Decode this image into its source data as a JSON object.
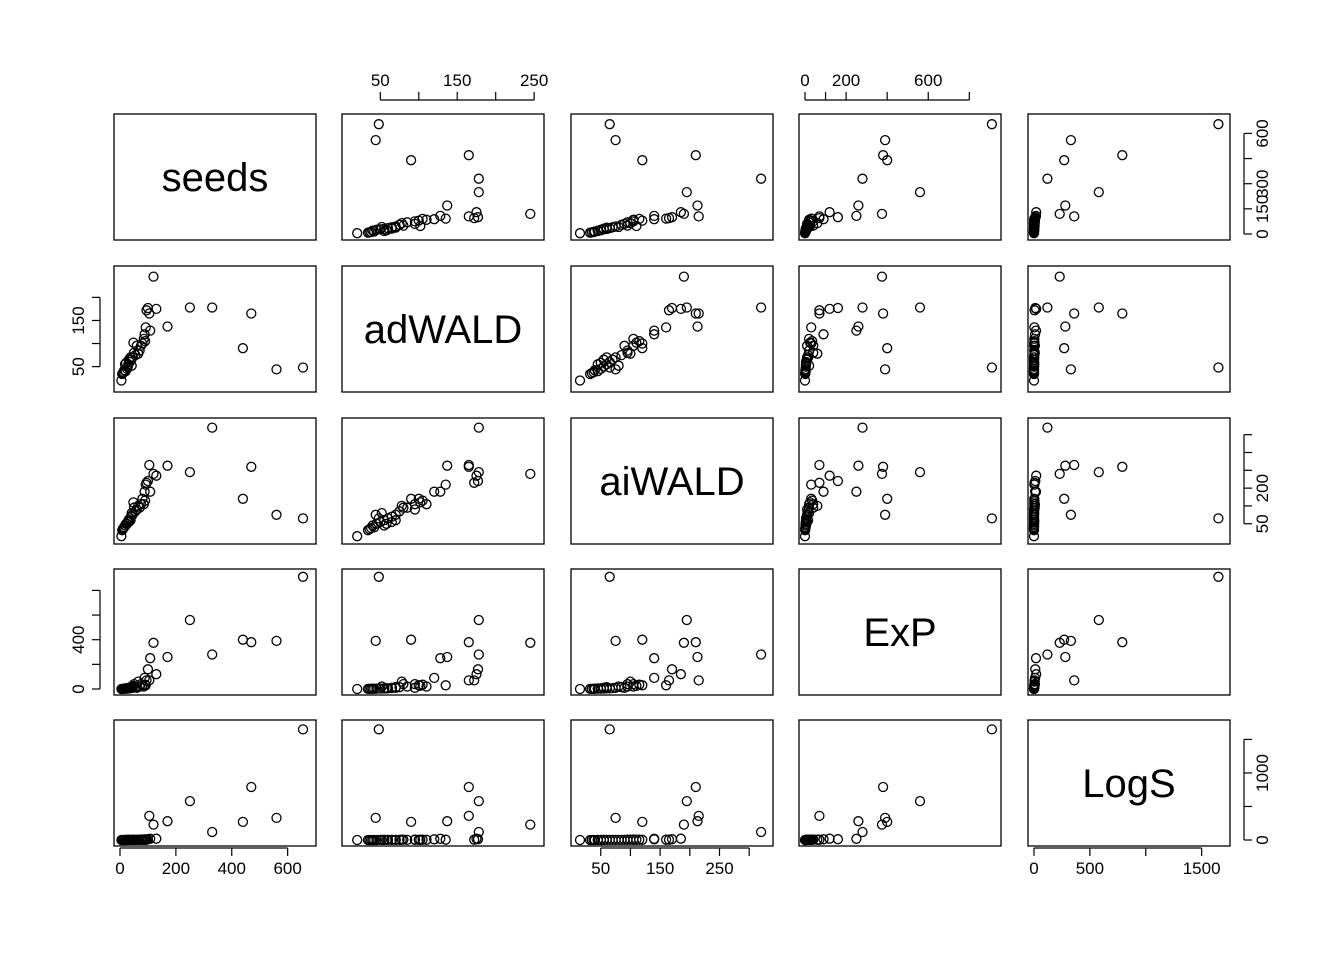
{
  "chart_data": {
    "type": "scatter",
    "variables": [
      "seeds",
      "adWALD",
      "aiWALD",
      "ExP",
      "LogS"
    ],
    "axes": {
      "seeds": {
        "range": [
          0,
          680
        ],
        "ticks": [
          0,
          200,
          400,
          600
        ],
        "tick_labels": [
          "0",
          "200",
          "400",
          "600"
        ]
      },
      "adWALD": {
        "range": [
          8,
          255
        ],
        "ticks": [
          50,
          100,
          150,
          200,
          250
        ],
        "tick_labels": [
          "50",
          "",
          "150",
          "",
          "250"
        ]
      },
      "aiWALD": {
        "range": [
          10,
          330
        ],
        "ticks": [
          50,
          100,
          150,
          200,
          250,
          300
        ],
        "tick_labels": [
          "50",
          "",
          "150",
          "",
          "250",
          ""
        ]
      },
      "ExP": {
        "range": [
          0,
          925
        ],
        "ticks": [
          0,
          100,
          200,
          400,
          600,
          800
        ],
        "tick_labels": [
          "0",
          "",
          "200",
          "",
          "600",
          ""
        ]
      },
      "LogS": {
        "range": [
          0,
          1700
        ],
        "ticks": [
          0,
          500,
          1000,
          1500
        ],
        "tick_labels": [
          "0",
          "500",
          "",
          "1500"
        ]
      }
    },
    "left_axis_labels": {
      "adWALD": [
        "50",
        "",
        "150",
        ""
      ],
      "ExP": [
        "0",
        "",
        "400",
        ""
      ]
    },
    "right_axis_labels": {
      "seeds": [
        "0",
        "150",
        "300",
        "",
        "600"
      ],
      "aiWALD": [
        "50",
        "",
        "200",
        ""
      ],
      "LogS": [
        "0",
        "",
        "1000",
        ""
      ]
    },
    "right_axis_ticks": {
      "seeds": [
        0,
        150,
        300,
        450,
        600
      ],
      "aiWALD": [
        50,
        100,
        150,
        200,
        250,
        300
      ],
      "LogS": [
        0,
        500,
        1000,
        1500
      ]
    },
    "left_axis_ticks": {
      "adWALD": [
        50,
        100,
        150,
        200
      ],
      "ExP": [
        0,
        200,
        400,
        600,
        800
      ]
    },
    "points": [
      {
        "seeds": 655,
        "adWALD": 48,
        "aiWALD": 65,
        "ExP": 910,
        "LogS": 1650
      },
      {
        "seeds": 560,
        "adWALD": 44,
        "aiWALD": 75,
        "ExP": 390,
        "LogS": 330
      },
      {
        "seeds": 470,
        "adWALD": 165,
        "aiWALD": 210,
        "ExP": 380,
        "LogS": 790
      },
      {
        "seeds": 440,
        "adWALD": 90,
        "aiWALD": 120,
        "ExP": 400,
        "LogS": 270
      },
      {
        "seeds": 330,
        "adWALD": 178,
        "aiWALD": 320,
        "ExP": 280,
        "LogS": 120
      },
      {
        "seeds": 250,
        "adWALD": 178,
        "aiWALD": 195,
        "ExP": 560,
        "LogS": 580
      },
      {
        "seeds": 170,
        "adWALD": 137,
        "aiWALD": 213,
        "ExP": 260,
        "LogS": 280
      },
      {
        "seeds": 130,
        "adWALD": 175,
        "aiWALD": 185,
        "ExP": 120,
        "LogS": 20
      },
      {
        "seeds": 120,
        "adWALD": 245,
        "aiWALD": 190,
        "ExP": 375,
        "LogS": 230
      },
      {
        "seeds": 105,
        "adWALD": 165,
        "aiWALD": 215,
        "ExP": 70,
        "LogS": 360
      },
      {
        "seeds": 100,
        "adWALD": 177,
        "aiWALD": 170,
        "ExP": 160,
        "LogS": 12
      },
      {
        "seeds": 95,
        "adWALD": 172,
        "aiWALD": 165,
        "ExP": 70,
        "LogS": 5
      },
      {
        "seeds": 80,
        "adWALD": 100,
        "aiWALD": 120,
        "ExP": 30,
        "LogS": 3
      },
      {
        "seeds": 90,
        "adWALD": 105,
        "aiWALD": 115,
        "ExP": 35,
        "LogS": 4
      },
      {
        "seeds": 85,
        "adWALD": 110,
        "aiWALD": 105,
        "ExP": 20,
        "LogS": 3
      },
      {
        "seeds": 70,
        "adWALD": 85,
        "aiWALD": 95,
        "ExP": 20,
        "LogS": 2
      },
      {
        "seeds": 60,
        "adWALD": 95,
        "aiWALD": 90,
        "ExP": 10,
        "LogS": 1
      },
      {
        "seeds": 55,
        "adWALD": 75,
        "aiWALD": 85,
        "ExP": 15,
        "LogS": 2
      },
      {
        "seeds": 50,
        "adWALD": 80,
        "aiWALD": 95,
        "ExP": 40,
        "LogS": 6
      },
      {
        "seeds": 45,
        "adWALD": 70,
        "aiWALD": 75,
        "ExP": 10,
        "LogS": 1
      },
      {
        "seeds": 40,
        "adWALD": 65,
        "aiWALD": 70,
        "ExP": 8,
        "LogS": 1
      },
      {
        "seeds": 35,
        "adWALD": 60,
        "aiWALD": 65,
        "ExP": 5,
        "LogS": 1
      },
      {
        "seeds": 30,
        "adWALD": 55,
        "aiWALD": 60,
        "ExP": 5,
        "LogS": 1
      },
      {
        "seeds": 28,
        "adWALD": 50,
        "aiWALD": 55,
        "ExP": 4,
        "LogS": 1
      },
      {
        "seeds": 25,
        "adWALD": 45,
        "aiWALD": 50,
        "ExP": 3,
        "LogS": 0
      },
      {
        "seeds": 20,
        "adWALD": 40,
        "aiWALD": 45,
        "ExP": 3,
        "LogS": 0
      },
      {
        "seeds": 15,
        "adWALD": 42,
        "aiWALD": 40,
        "ExP": 2,
        "LogS": 0
      },
      {
        "seeds": 12,
        "adWALD": 38,
        "aiWALD": 38,
        "ExP": 2,
        "LogS": 0
      },
      {
        "seeds": 10,
        "adWALD": 36,
        "aiWALD": 35,
        "ExP": 1,
        "LogS": 0
      },
      {
        "seeds": 8,
        "adWALD": 34,
        "aiWALD": 32,
        "ExP": 1,
        "LogS": 0
      },
      {
        "seeds": 5,
        "adWALD": 20,
        "aiWALD": 15,
        "ExP": 0,
        "LogS": 0
      },
      {
        "seeds": 18,
        "adWALD": 55,
        "aiWALD": 45,
        "ExP": 5,
        "LogS": 1
      },
      {
        "seeds": 22,
        "adWALD": 58,
        "aiWALD": 50,
        "ExP": 6,
        "LogS": 1
      },
      {
        "seeds": 32,
        "adWALD": 65,
        "aiWALD": 55,
        "ExP": 10,
        "LogS": 1
      },
      {
        "seeds": 38,
        "adWALD": 70,
        "aiWALD": 60,
        "ExP": 15,
        "LogS": 2
      },
      {
        "seeds": 42,
        "adWALD": 52,
        "aiWALD": 80,
        "ExP": 20,
        "LogS": 2
      },
      {
        "seeds": 48,
        "adWALD": 102,
        "aiWALD": 110,
        "ExP": 25,
        "LogS": 3
      },
      {
        "seeds": 65,
        "adWALD": 78,
        "aiWALD": 100,
        "ExP": 60,
        "LogS": 5
      },
      {
        "seeds": 75,
        "adWALD": 95,
        "aiWALD": 105,
        "ExP": 40,
        "LogS": 8
      },
      {
        "seeds": 88,
        "adWALD": 120,
        "aiWALD": 140,
        "ExP": 90,
        "LogS": 10
      },
      {
        "seeds": 92,
        "adWALD": 135,
        "aiWALD": 160,
        "ExP": 30,
        "LogS": 4
      },
      {
        "seeds": 108,
        "adWALD": 128,
        "aiWALD": 140,
        "ExP": 250,
        "LogS": 18
      }
    ]
  }
}
